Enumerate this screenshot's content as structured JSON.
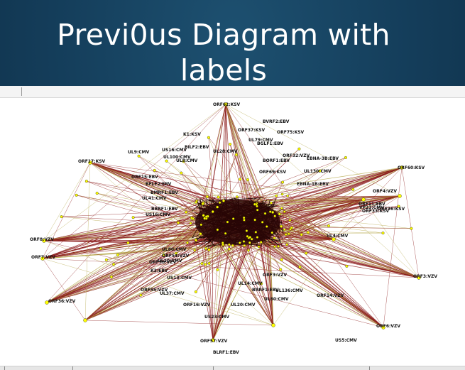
{
  "slide": {
    "title_line1": "Previ0us Diagram with",
    "title_line2": "labels"
  },
  "diagram": {
    "edge_colors": {
      "dark": "#8b1a1a",
      "light": "#b5a84a"
    },
    "node_color": "#ffff00",
    "hub_nodes": [
      "ORF62:KSV",
      "ORF17:KSV",
      "ORF4:VZV",
      "ORF7:VZV",
      "ORF8:VZV",
      "ORF57:VZV",
      "ORF6:VZV",
      "ORF60:KSV",
      "ORF11:EBV",
      "ORF3:VZV",
      "ORF36:VZV"
    ],
    "labels": [
      "ORF62:KSV",
      "BVRF2:EBV",
      "ORF37:KSV",
      "ORF75:KSV",
      "K1:KSV",
      "UL79:CMV",
      "BILF2:EBV",
      "BGLF1:EBV",
      "UL9:CMV",
      "US16:CMV",
      "UL28:CMV",
      "ORF32:VZV",
      "EBNA-3B:EBV",
      "UL100:CMV",
      "UL8:CMV",
      "ORF17:KSV",
      "BORF1:EBV",
      "ORF69:KSV",
      "ORF60:KSV",
      "UL130:CMV",
      "ORF15:EBV",
      "BFLF2:EBV",
      "BMRF1:EBV",
      "UL41:CMV",
      "EBNA-1B:EBV",
      "ORF4:VZV",
      "ORF36:KSV",
      "ORF33:KSV",
      "US16:CMV",
      "BBRF1:EBV",
      "ORF11:EBV",
      "VP23:CMV",
      "ORF8:VZV",
      "UL4:CMV",
      "ORF7:VZV",
      "ORF3:VZV",
      "UL80:CMV",
      "UL20:CMV",
      "ORF16:VZV",
      "US23:CMV",
      "ORF57:VZV",
      "ORF6:VZV",
      "ORF3:VZV",
      "UL80:CMV",
      "ORF14:VZV",
      "UL136:CMV",
      "US5:CMV",
      "UL20:CMV",
      "BRRF1:EBV",
      "UL14:CMV",
      "ORF36:VZV",
      "ORF55:VZV",
      "UL37:CMV",
      "K3:EBV",
      "US13:CMV",
      "BLRF1:EBV",
      "ORF36:VZV",
      "ORF54:VZV"
    ]
  }
}
